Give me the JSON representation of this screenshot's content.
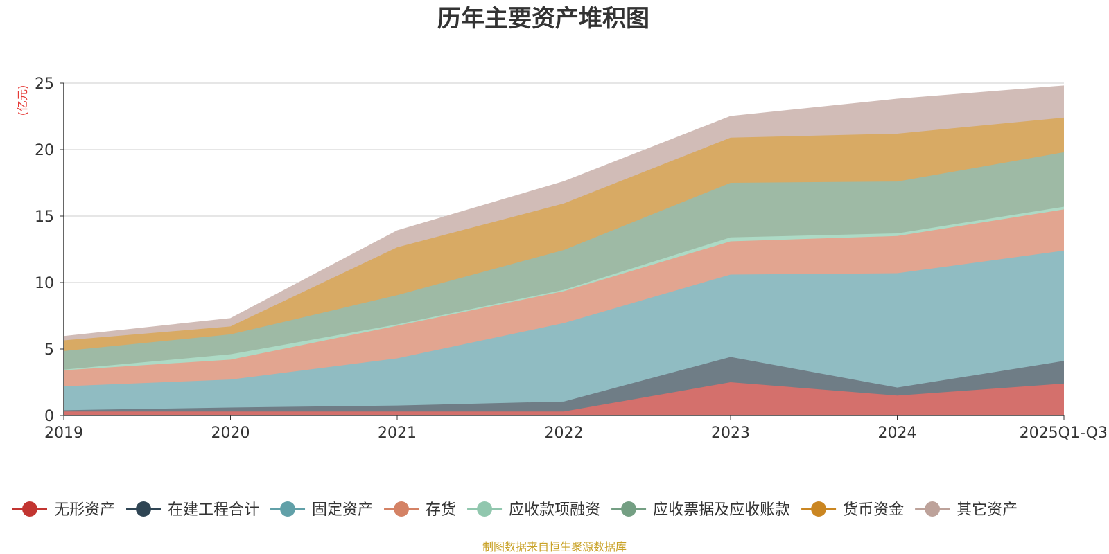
{
  "chart_data": {
    "type": "area",
    "stacked": true,
    "title": "历年主要资产堆积图",
    "ylabel": "(亿元)",
    "xlabel": "",
    "categories": [
      "2019",
      "2020",
      "2021",
      "2022",
      "2023",
      "2024",
      "2025Q1-Q3"
    ],
    "ylim": [
      0,
      25
    ],
    "yticks": [
      0,
      5,
      10,
      15,
      20,
      25
    ],
    "grid": true,
    "legend_position": "bottom",
    "series": [
      {
        "name": "无形资产",
        "color": "#c23531",
        "fill": "#d4706c",
        "values": [
          0.3,
          0.3,
          0.3,
          0.3,
          2.5,
          1.5,
          2.4
        ]
      },
      {
        "name": "在建工程合计",
        "color": "#2f4554",
        "fill": "#6f7d86",
        "values": [
          0.1,
          0.3,
          0.45,
          0.75,
          1.9,
          0.6,
          1.7
        ]
      },
      {
        "name": "固定资产",
        "color": "#61a0a8",
        "fill": "#90bcc2",
        "values": [
          1.8,
          2.1,
          3.55,
          5.9,
          6.2,
          8.6,
          8.3
        ]
      },
      {
        "name": "存货",
        "color": "#d48265",
        "fill": "#e2a590",
        "values": [
          1.2,
          1.5,
          2.45,
          2.4,
          2.5,
          2.8,
          3.1
        ]
      },
      {
        "name": "应收款项融资",
        "color": "#91c7ae",
        "fill": "#addac5",
        "values": [
          0.05,
          0.4,
          0.1,
          0.1,
          0.3,
          0.2,
          0.2
        ]
      },
      {
        "name": "应收票据及应收账款",
        "color": "#749f83",
        "fill": "#9ebaa5",
        "values": [
          1.4,
          1.5,
          2.2,
          3.0,
          4.1,
          3.9,
          4.1
        ]
      },
      {
        "name": "货币资金",
        "color": "#ca8622",
        "fill": "#d8aa64",
        "values": [
          0.8,
          0.6,
          3.6,
          3.5,
          3.4,
          3.6,
          2.6
        ]
      },
      {
        "name": "其它资产",
        "color": "#bda29a",
        "fill": "#d1bcb7",
        "values": [
          0.3,
          0.6,
          1.25,
          1.65,
          1.6,
          2.6,
          2.4
        ]
      }
    ]
  },
  "footer": {
    "source": "制图数据来自恒生聚源数据库"
  }
}
